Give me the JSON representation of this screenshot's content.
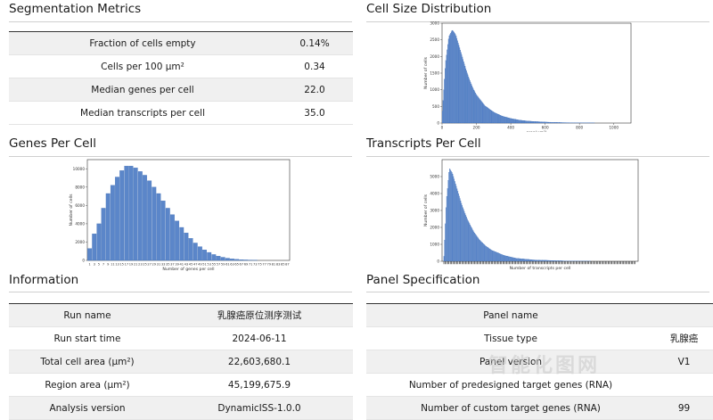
{
  "segmentation": {
    "title": "Segmentation Metrics",
    "rows": [
      {
        "label": "Fraction of cells empty",
        "value": "0.14%"
      },
      {
        "label": "Cells per 100 µm²",
        "value": "0.34"
      },
      {
        "label": "Median genes per cell",
        "value": "22.0"
      },
      {
        "label": "Median transcripts per cell",
        "value": "35.0"
      }
    ]
  },
  "cell_size": {
    "title": "Cell Size Distribution"
  },
  "genes_per_cell": {
    "title": "Genes Per Cell"
  },
  "transcripts_per_cell": {
    "title": "Transcripts Per Cell"
  },
  "information": {
    "title": "Information",
    "rows": [
      {
        "label": "Run name",
        "value": "乳腺癌原位测序测试"
      },
      {
        "label": "Run start time",
        "value": "2024-06-11"
      },
      {
        "label": "Total cell area (µm²)",
        "value": "22,603,680.1"
      },
      {
        "label": "Region area (µm²)",
        "value": "45,199,675.9"
      },
      {
        "label": "Analysis version",
        "value": "DynamicISS-1.0.0"
      }
    ]
  },
  "panel": {
    "title": "Panel Specification",
    "rows": [
      {
        "label": "Panel name",
        "value": ""
      },
      {
        "label": "Tissue type",
        "value": "乳腺癌"
      },
      {
        "label": "Panel version",
        "value": "V1"
      },
      {
        "label": "Number of predesigned target genes (RNA)",
        "value": ""
      },
      {
        "label": "Number of custom target genes (RNA)",
        "value": "99"
      }
    ]
  },
  "watermark": "智能化图网",
  "chart_data": [
    {
      "type": "bar",
      "title": "Cell Size Distribution",
      "xlabel": "area(μm²)",
      "ylabel": "Number of cells",
      "xlim": [
        0,
        1100
      ],
      "ylim": [
        0,
        3000
      ],
      "xticks": [
        "0",
        "200",
        "400",
        "600",
        "800",
        "1000"
      ],
      "yticks": [
        "0",
        "500",
        "1000",
        "1500",
        "2000",
        "2500",
        "3000"
      ],
      "x": [
        0,
        20,
        40,
        60,
        80,
        100,
        120,
        140,
        160,
        180,
        200,
        250,
        300,
        350,
        400,
        450,
        500,
        600,
        700,
        800,
        1000
      ],
      "values": [
        200,
        1800,
        2600,
        2800,
        2650,
        2300,
        1950,
        1600,
        1300,
        1050,
        850,
        520,
        330,
        210,
        140,
        90,
        60,
        30,
        15,
        8,
        2
      ]
    },
    {
      "type": "bar",
      "title": "Genes Per Cell",
      "xlabel": "Number of genes per cell",
      "ylabel": "Number of cells",
      "ylim": [
        0,
        11000
      ],
      "yticks": [
        "0",
        "2000",
        "4000",
        "6000",
        "8000",
        "10000"
      ],
      "categories": [
        "1",
        "3",
        "5",
        "7",
        "9",
        "11",
        "13",
        "15",
        "17",
        "19",
        "21",
        "23",
        "25",
        "27",
        "29",
        "31",
        "33",
        "35",
        "37",
        "39",
        "41",
        "43",
        "45",
        "47",
        "49",
        "51",
        "53",
        "55",
        "57",
        "59",
        "61",
        "63",
        "65",
        "67",
        "69",
        "71",
        "73",
        "75",
        "77",
        "79",
        "81",
        "83",
        "85",
        "87"
      ],
      "values": [
        1300,
        2900,
        4000,
        5700,
        7300,
        8200,
        9100,
        9800,
        10300,
        10300,
        10100,
        9700,
        9300,
        8700,
        8000,
        7300,
        6500,
        5700,
        5000,
        4300,
        3600,
        3000,
        2400,
        1900,
        1500,
        1150,
        870,
        640,
        470,
        340,
        240,
        170,
        120,
        80,
        55,
        38,
        25,
        16,
        10,
        6,
        4,
        3,
        2,
        1
      ]
    },
    {
      "type": "bar",
      "title": "Transcripts Per Cell",
      "xlabel": "Number of transcripts per cell",
      "ylabel": "Number of cells",
      "ylim": [
        0,
        6000
      ],
      "yticks": [
        "0",
        "1000",
        "2000",
        "3000",
        "4000",
        "5000"
      ],
      "x": [
        1,
        5,
        10,
        15,
        20,
        25,
        30,
        35,
        40,
        50,
        60,
        70,
        80,
        100,
        120,
        150,
        200,
        250,
        300
      ],
      "values": [
        300,
        3500,
        5500,
        5200,
        4600,
        4000,
        3400,
        2900,
        2450,
        1750,
        1250,
        900,
        650,
        350,
        180,
        80,
        25,
        8,
        2
      ]
    }
  ]
}
